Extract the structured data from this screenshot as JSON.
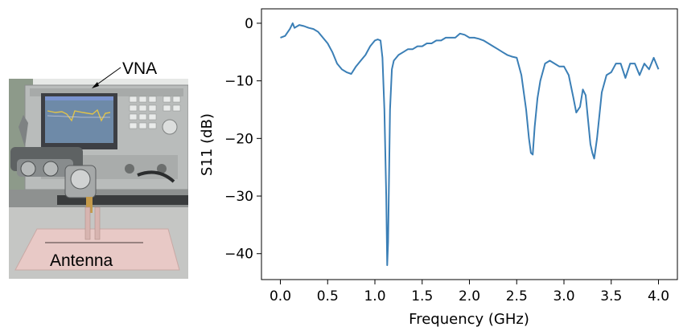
{
  "photo": {
    "vna_label": "VNA",
    "antenna_label": "Antenna"
  },
  "chart_data": {
    "type": "line",
    "title": "",
    "xlabel": "Frequency (GHz)",
    "ylabel": "S11 (dB)",
    "xlim": [
      -0.2,
      4.2
    ],
    "ylim": [
      -44.5,
      2.5
    ],
    "xticks": [
      0.0,
      0.5,
      1.0,
      1.5,
      2.0,
      2.5,
      3.0,
      3.5,
      4.0
    ],
    "xtick_labels": [
      "0.0",
      "0.5",
      "1.0",
      "1.5",
      "2.0",
      "2.5",
      "3.0",
      "3.5",
      "4.0"
    ],
    "yticks": [
      0,
      -10,
      -20,
      -30,
      -40
    ],
    "ytick_labels": [
      "0",
      "−10",
      "−20",
      "−30",
      "−40"
    ],
    "grid": false,
    "color": "#3b7fb6",
    "series": [
      {
        "x": [
          0.0,
          0.05,
          0.1,
          0.13,
          0.15,
          0.2,
          0.25,
          0.3,
          0.35,
          0.4,
          0.45,
          0.5,
          0.55,
          0.6,
          0.65,
          0.7,
          0.75,
          0.8,
          0.85,
          0.9,
          0.95,
          1.0,
          1.03,
          1.06,
          1.08,
          1.1,
          1.12,
          1.13,
          1.14,
          1.16,
          1.18,
          1.2,
          1.25,
          1.3,
          1.35,
          1.4,
          1.45,
          1.5,
          1.55,
          1.6,
          1.65,
          1.7,
          1.75,
          1.8,
          1.85,
          1.9,
          1.95,
          2.0,
          2.05,
          2.1,
          2.15,
          2.2,
          2.25,
          2.3,
          2.35,
          2.4,
          2.45,
          2.5,
          2.55,
          2.6,
          2.63,
          2.65,
          2.67,
          2.69,
          2.72,
          2.75,
          2.8,
          2.85,
          2.9,
          2.95,
          3.0,
          3.05,
          3.1,
          3.13,
          3.17,
          3.2,
          3.23,
          3.25,
          3.28,
          3.3,
          3.32,
          3.35,
          3.4,
          3.45,
          3.5,
          3.55,
          3.6,
          3.65,
          3.7,
          3.75,
          3.8,
          3.85,
          3.9,
          3.95,
          4.0
        ],
        "y": [
          -2.5,
          -2.2,
          -1.0,
          0.0,
          -0.8,
          -0.3,
          -0.5,
          -0.8,
          -1.0,
          -1.5,
          -2.5,
          -3.5,
          -5.0,
          -7.0,
          -8.0,
          -8.5,
          -8.8,
          -7.5,
          -6.5,
          -5.5,
          -4.0,
          -3.0,
          -2.8,
          -3.0,
          -6.0,
          -15.0,
          -30.0,
          -42.0,
          -38.0,
          -15.0,
          -8.0,
          -6.5,
          -5.5,
          -5.0,
          -4.5,
          -4.5,
          -4.0,
          -4.0,
          -3.5,
          -3.5,
          -3.0,
          -3.0,
          -2.5,
          -2.5,
          -2.5,
          -1.8,
          -2.0,
          -2.5,
          -2.5,
          -2.7,
          -3.0,
          -3.5,
          -4.0,
          -4.5,
          -5.0,
          -5.5,
          -5.8,
          -6.0,
          -9.0,
          -15.0,
          -20.0,
          -22.5,
          -22.8,
          -18.0,
          -13.0,
          -10.0,
          -7.0,
          -6.5,
          -7.0,
          -7.5,
          -7.5,
          -9.0,
          -13.0,
          -15.5,
          -14.5,
          -11.5,
          -12.5,
          -16.0,
          -21.0,
          -22.5,
          -23.5,
          -20.0,
          -12.0,
          -9.0,
          -8.5,
          -7.0,
          -7.0,
          -9.5,
          -7.0,
          -7.0,
          -9.0,
          -7.0,
          -8.0,
          -6.0,
          -8.0
        ]
      }
    ]
  }
}
